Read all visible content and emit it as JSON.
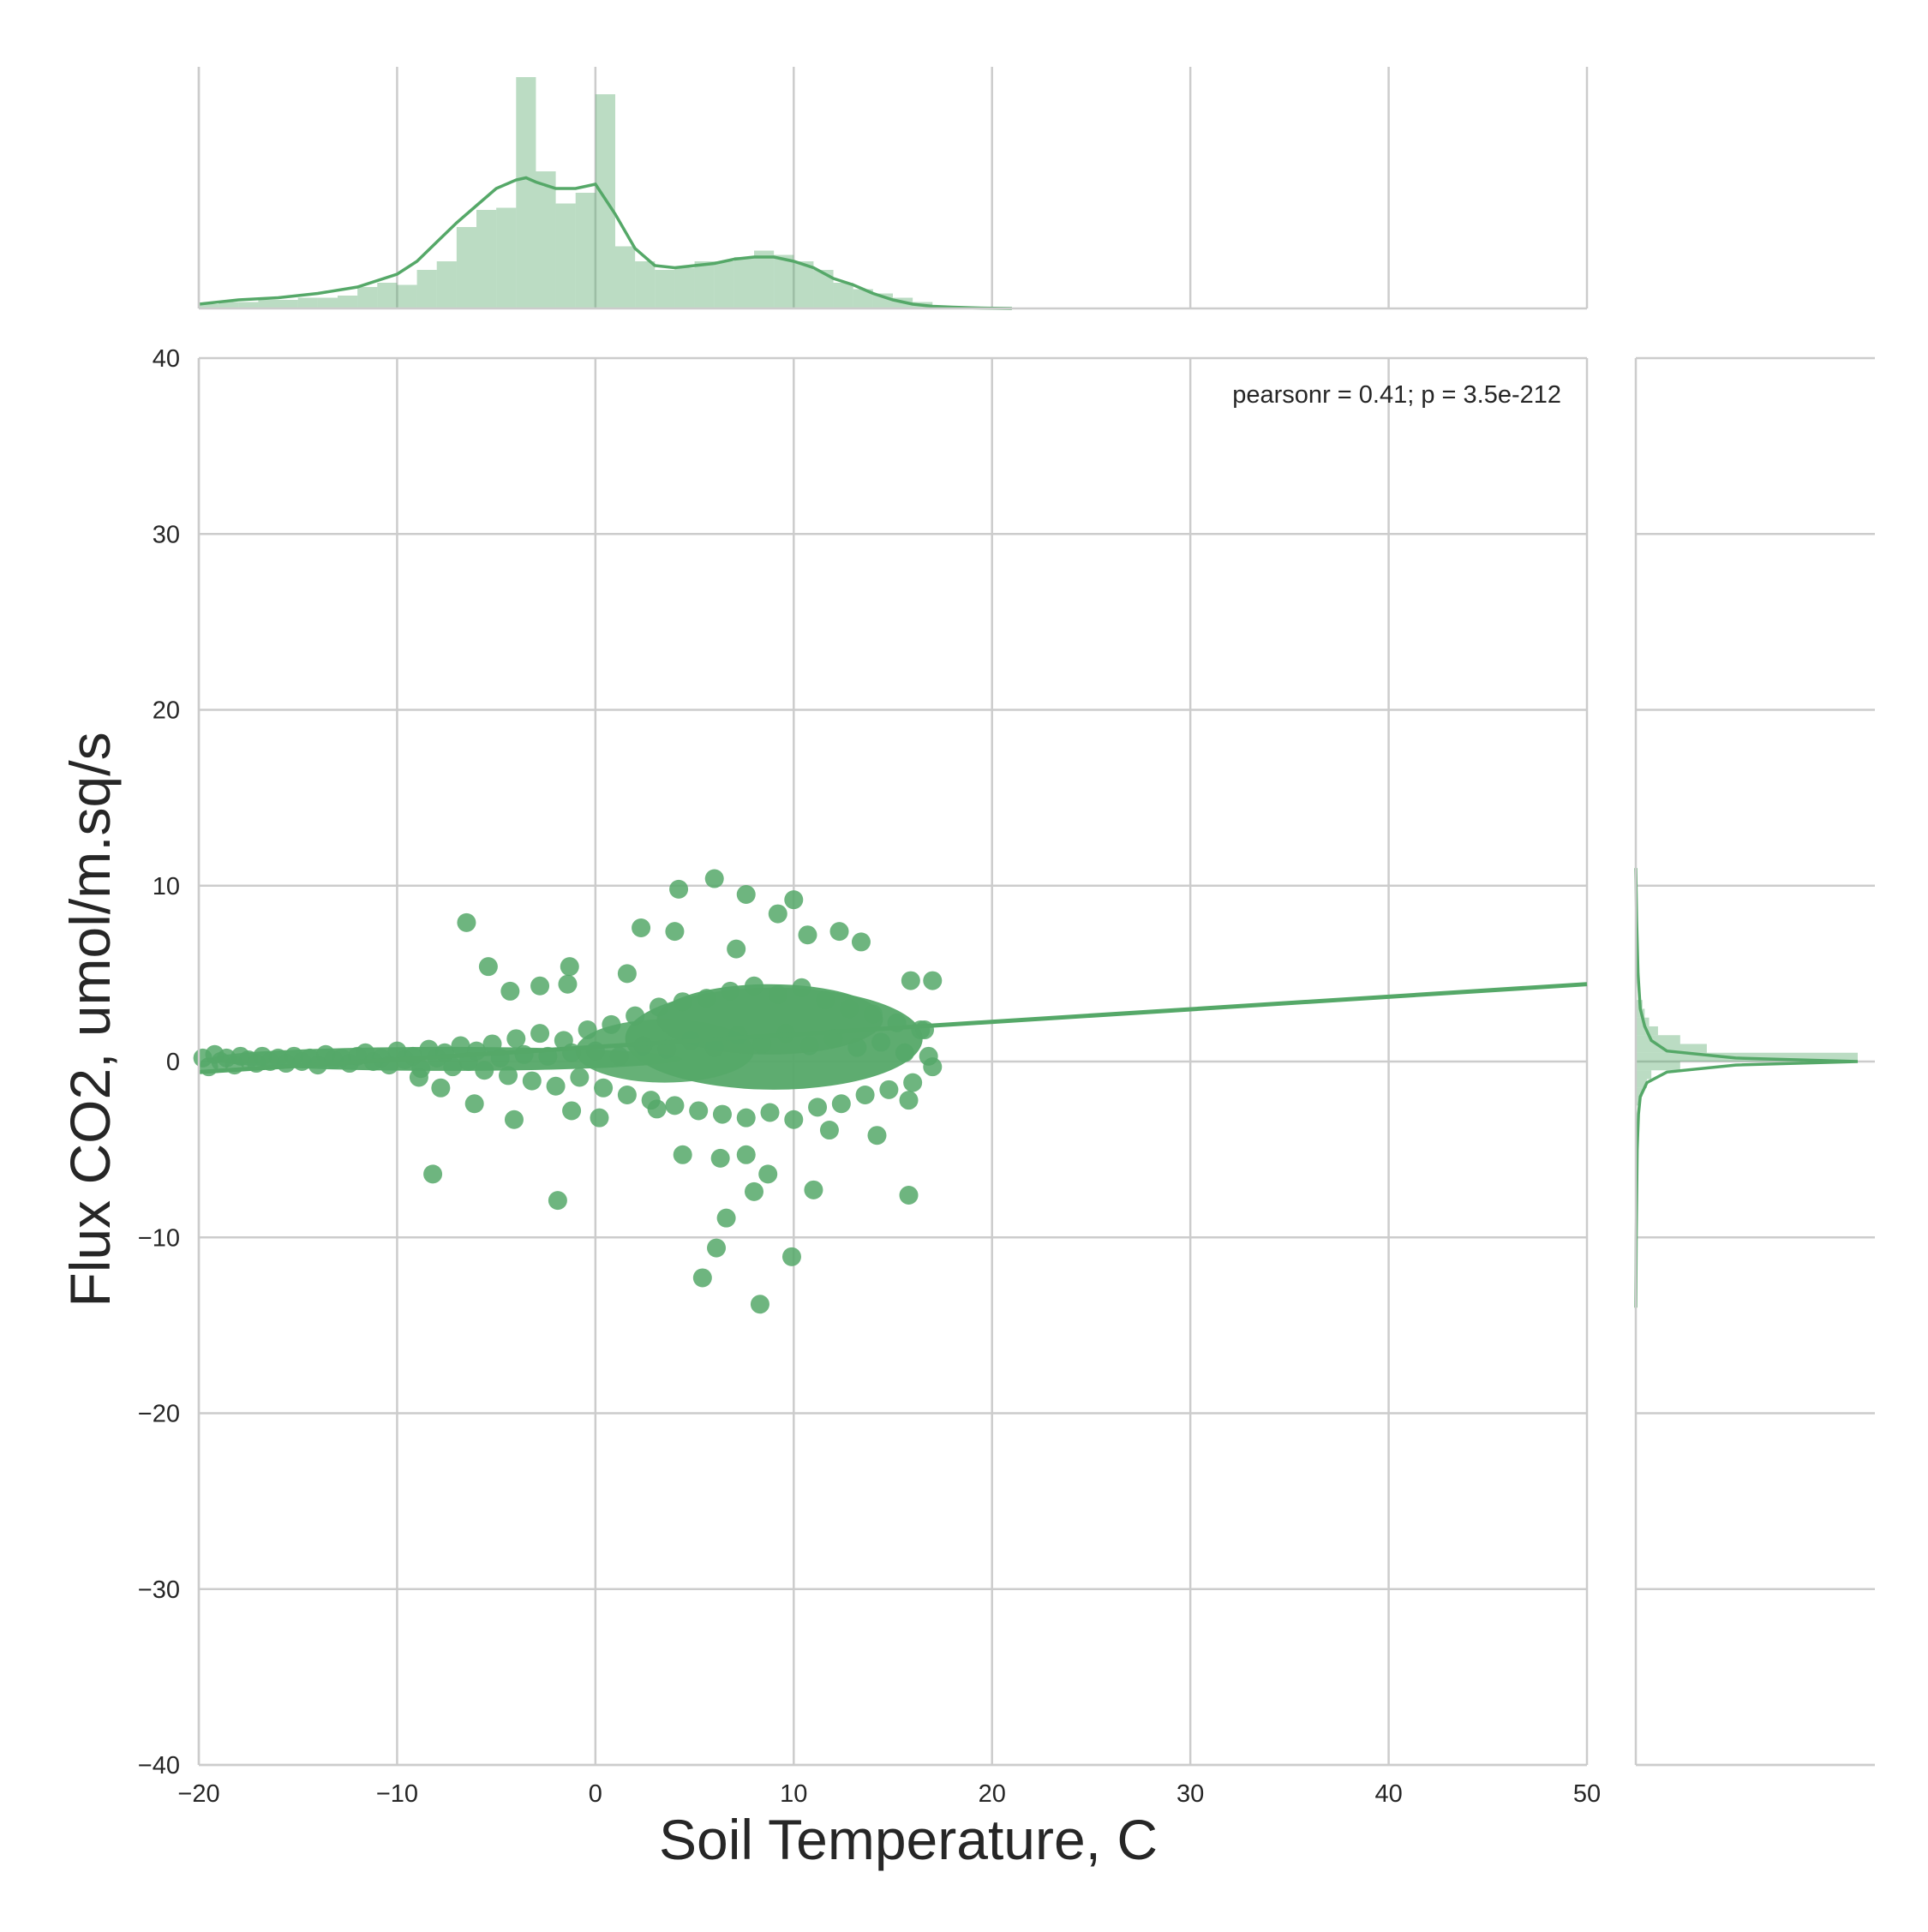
{
  "chart_data": {
    "type": "scatter",
    "subtype": "jointplot",
    "xlabel": "Soil Temperature, C",
    "ylabel": "Flux CO2, umol/m.sq/s",
    "xlim": [
      -20,
      50
    ],
    "ylim": [
      -40,
      40
    ],
    "xticks": [
      -20,
      -10,
      0,
      10,
      20,
      30,
      40,
      50
    ],
    "xtick_labels": [
      "−20",
      "−10",
      "0",
      "10",
      "20",
      "30",
      "40",
      "50"
    ],
    "yticks": [
      -40,
      -30,
      -20,
      -10,
      0,
      10,
      20,
      30,
      40
    ],
    "ytick_labels": [
      "−40",
      "−30",
      "−20",
      "−10",
      "0",
      "10",
      "20",
      "30",
      "40"
    ],
    "grid": true,
    "color": "#55a868",
    "annotation": "pearsonr = 0.41; p = 3.5e-212",
    "regression": {
      "x": [
        -20,
        50
      ],
      "y": [
        -0.6,
        4.4
      ]
    },
    "points": [
      [
        -19.8,
        0.2
      ],
      [
        -19.5,
        -0.3
      ],
      [
        -19.2,
        0.4
      ],
      [
        -18.9,
        0.0
      ],
      [
        -18.6,
        0.2
      ],
      [
        -18.2,
        -0.2
      ],
      [
        -17.9,
        0.3
      ],
      [
        -17.5,
        0.1
      ],
      [
        -17.1,
        -0.1
      ],
      [
        -16.8,
        0.3
      ],
      [
        -16.4,
        0.0
      ],
      [
        -16.0,
        0.2
      ],
      [
        -15.6,
        -0.1
      ],
      [
        -15.2,
        0.3
      ],
      [
        -14.8,
        0.0
      ],
      [
        -14.4,
        0.2
      ],
      [
        -14.0,
        -0.2
      ],
      [
        -13.6,
        0.4
      ],
      [
        -13.2,
        0.1
      ],
      [
        -12.8,
        0.2
      ],
      [
        -12.4,
        -0.1
      ],
      [
        -12.0,
        0.3
      ],
      [
        -11.6,
        0.5
      ],
      [
        -11.2,
        0.0
      ],
      [
        -10.8,
        0.2
      ],
      [
        -10.4,
        -0.2
      ],
      [
        -10.0,
        0.6
      ],
      [
        -9.6,
        0.1
      ],
      [
        -9.2,
        0.3
      ],
      [
        -8.8,
        -0.4
      ],
      [
        -8.4,
        0.7
      ],
      [
        -8.0,
        0.2
      ],
      [
        -7.6,
        0.5
      ],
      [
        -7.2,
        -0.3
      ],
      [
        -6.8,
        0.9
      ],
      [
        -6.4,
        0.0
      ],
      [
        -6.0,
        0.6
      ],
      [
        -5.6,
        -0.5
      ],
      [
        -5.2,
        1.0
      ],
      [
        -4.8,
        0.2
      ],
      [
        -4.4,
        -0.8
      ],
      [
        -4.0,
        1.3
      ],
      [
        -3.6,
        0.4
      ],
      [
        -3.2,
        -1.1
      ],
      [
        -2.8,
        1.6
      ],
      [
        -2.4,
        0.3
      ],
      [
        -2.0,
        -1.4
      ],
      [
        -1.6,
        1.2
      ],
      [
        -1.2,
        0.5
      ],
      [
        -0.8,
        -0.9
      ],
      [
        -0.4,
        1.8
      ],
      [
        0.0,
        0.6
      ],
      [
        0.4,
        -1.5
      ],
      [
        0.8,
        2.1
      ],
      [
        1.2,
        0.3
      ],
      [
        1.6,
        -1.9
      ],
      [
        2.0,
        2.6
      ],
      [
        2.4,
        0.9
      ],
      [
        2.8,
        -2.2
      ],
      [
        3.2,
        3.1
      ],
      [
        3.6,
        0.7
      ],
      [
        4.0,
        -2.5
      ],
      [
        4.4,
        3.4
      ],
      [
        4.8,
        1.2
      ],
      [
        5.2,
        -2.8
      ],
      [
        5.6,
        3.6
      ],
      [
        6.0,
        0.8
      ],
      [
        6.4,
        -3.0
      ],
      [
        6.8,
        4.0
      ],
      [
        7.2,
        1.5
      ],
      [
        7.6,
        -3.2
      ],
      [
        8.0,
        4.3
      ],
      [
        8.4,
        1.0
      ],
      [
        8.8,
        -2.9
      ],
      [
        9.2,
        3.8
      ],
      [
        9.6,
        1.6
      ],
      [
        10.0,
        -3.3
      ],
      [
        10.4,
        4.2
      ],
      [
        10.8,
        0.9
      ],
      [
        11.2,
        -2.6
      ],
      [
        11.6,
        3.5
      ],
      [
        12.0,
        1.3
      ],
      [
        12.4,
        -2.4
      ],
      [
        12.8,
        3.0
      ],
      [
        13.2,
        0.8
      ],
      [
        13.6,
        -1.9
      ],
      [
        14.0,
        2.7
      ],
      [
        14.4,
        1.1
      ],
      [
        14.8,
        -1.6
      ],
      [
        15.2,
        2.2
      ],
      [
        15.6,
        0.5
      ],
      [
        16.0,
        -1.2
      ],
      [
        16.4,
        1.8
      ],
      [
        16.8,
        0.3
      ],
      [
        17.0,
        -0.3
      ],
      [
        6.0,
        10.4
      ],
      [
        7.6,
        9.5
      ],
      [
        10.0,
        9.2
      ],
      [
        4.2,
        9.8
      ],
      [
        9.2,
        8.4
      ],
      [
        -6.5,
        7.9
      ],
      [
        2.3,
        7.6
      ],
      [
        4.0,
        7.4
      ],
      [
        12.3,
        7.4
      ],
      [
        10.7,
        7.2
      ],
      [
        13.4,
        6.8
      ],
      [
        7.1,
        6.4
      ],
      [
        -5.4,
        5.4
      ],
      [
        -1.3,
        5.4
      ],
      [
        1.6,
        5.0
      ],
      [
        -4.3,
        4.0
      ],
      [
        -2.8,
        4.3
      ],
      [
        -1.4,
        4.4
      ],
      [
        15.9,
        4.6
      ],
      [
        17.0,
        4.6
      ],
      [
        16.6,
        1.8
      ],
      [
        -8.2,
        -6.4
      ],
      [
        -1.9,
        -7.9
      ],
      [
        6.1,
        -10.6
      ],
      [
        5.4,
        -12.3
      ],
      [
        8.3,
        -13.8
      ],
      [
        9.9,
        -11.1
      ],
      [
        6.6,
        -8.9
      ],
      [
        11.0,
        -7.3
      ],
      [
        15.8,
        -7.6
      ],
      [
        8.7,
        -6.4
      ],
      [
        7.6,
        -5.3
      ],
      [
        4.4,
        -5.3
      ],
      [
        6.3,
        -5.5
      ],
      [
        8.0,
        -7.4
      ],
      [
        -4.1,
        -3.3
      ],
      [
        -6.1,
        -2.4
      ],
      [
        -8.9,
        -0.9
      ],
      [
        -7.8,
        -1.5
      ],
      [
        -1.2,
        -2.8
      ],
      [
        0.2,
        -3.2
      ],
      [
        3.1,
        -2.7
      ],
      [
        14.2,
        -4.2
      ],
      [
        15.8,
        -2.2
      ],
      [
        11.8,
        -3.9
      ]
    ],
    "top_hist": {
      "bin_width": 1.0,
      "bin_starts": [
        -20,
        -19,
        -18,
        -17,
        -16,
        -15,
        -14,
        -13,
        -12,
        -11,
        -10,
        -9,
        -8,
        -7,
        -6,
        -5,
        -4,
        -3,
        -2,
        -1,
        0,
        1,
        2,
        3,
        4,
        5,
        6,
        7,
        8,
        9,
        10,
        11,
        12,
        13,
        14,
        15,
        16,
        17,
        18,
        19,
        20
      ],
      "heights": [
        0.02,
        0.03,
        0.03,
        0.04,
        0.04,
        0.05,
        0.05,
        0.06,
        0.1,
        0.12,
        0.11,
        0.18,
        0.22,
        0.38,
        0.46,
        0.47,
        1.08,
        0.64,
        0.49,
        0.54,
        1.0,
        0.29,
        0.22,
        0.18,
        0.19,
        0.22,
        0.22,
        0.24,
        0.27,
        0.25,
        0.22,
        0.18,
        0.12,
        0.09,
        0.07,
        0.05,
        0.03,
        0.01,
        0.01,
        0.005,
        0.0
      ],
      "kde_x": [
        -20,
        -18,
        -16,
        -14,
        -12,
        -10,
        -9,
        -8,
        -7,
        -6,
        -5,
        -4,
        -3.5,
        -3,
        -2,
        -1,
        0,
        1,
        2,
        3,
        4,
        5,
        6,
        7,
        8,
        9,
        10,
        11,
        12,
        13,
        14,
        15,
        16,
        17,
        18,
        19,
        20,
        21
      ],
      "kde_y": [
        0.02,
        0.04,
        0.05,
        0.07,
        0.1,
        0.16,
        0.22,
        0.31,
        0.4,
        0.48,
        0.56,
        0.6,
        0.61,
        0.59,
        0.56,
        0.56,
        0.58,
        0.44,
        0.28,
        0.2,
        0.19,
        0.2,
        0.21,
        0.23,
        0.24,
        0.24,
        0.22,
        0.19,
        0.14,
        0.11,
        0.07,
        0.04,
        0.02,
        0.01,
        0.006,
        0.003,
        0.001,
        0.0
      ]
    },
    "right_hist": {
      "bin_width": 0.5,
      "bin_starts": [
        -2.5,
        -2.0,
        -1.5,
        -1.0,
        -0.5,
        0.0,
        0.5,
        1.0,
        1.5,
        2.0,
        2.5,
        3.0
      ],
      "heights": [
        0.02,
        0.03,
        0.05,
        0.07,
        0.2,
        1.0,
        0.32,
        0.2,
        0.1,
        0.06,
        0.04,
        0.03
      ],
      "kde_y": [
        -14,
        -10,
        -5,
        -3,
        -2,
        -1.2,
        -0.6,
        -0.2,
        0.0,
        0.2,
        0.6,
        1.2,
        2,
        3,
        5,
        8,
        11
      ],
      "kde_x": [
        0.0,
        0.002,
        0.006,
        0.012,
        0.02,
        0.05,
        0.14,
        0.45,
        1.0,
        0.45,
        0.14,
        0.07,
        0.04,
        0.02,
        0.01,
        0.004,
        0.0
      ]
    }
  }
}
